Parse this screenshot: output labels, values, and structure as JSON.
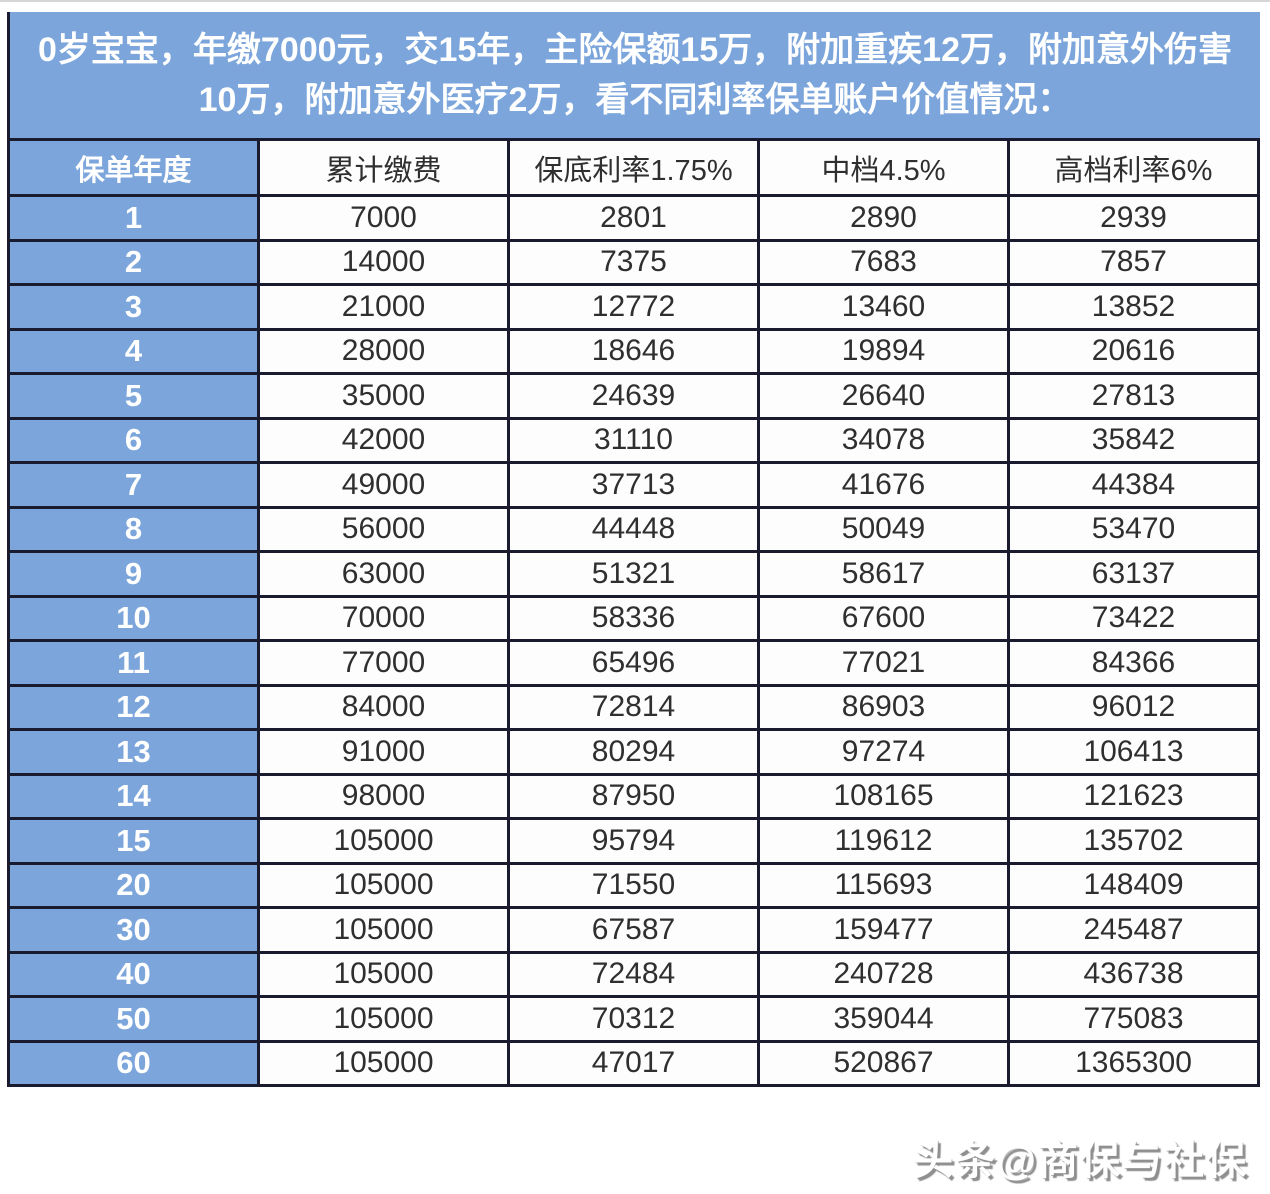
{
  "banner": {
    "line1": "0岁宝宝，年缴7000元，交15年，主险保额15万，附加重疾12万，附加意外伤害",
    "line2": "10万，附加意外医疗2万，看不同利率保单账户价值情况："
  },
  "chart_data": {
    "type": "table",
    "title": "0岁宝宝，年缴7000元，交15年，主险保额15万，附加重疾12万，附加意外伤害10万，附加意外医疗2万，看不同利率保单账户价值情况：",
    "columns": [
      "保单年度",
      "累计缴费",
      "保底利率1.75%",
      "中档4.5%",
      "高档利率6%"
    ],
    "rows": [
      [
        "1",
        "7000",
        "2801",
        "2890",
        "2939"
      ],
      [
        "2",
        "14000",
        "7375",
        "7683",
        "7857"
      ],
      [
        "3",
        "21000",
        "12772",
        "13460",
        "13852"
      ],
      [
        "4",
        "28000",
        "18646",
        "19894",
        "20616"
      ],
      [
        "5",
        "35000",
        "24639",
        "26640",
        "27813"
      ],
      [
        "6",
        "42000",
        "31110",
        "34078",
        "35842"
      ],
      [
        "7",
        "49000",
        "37713",
        "41676",
        "44384"
      ],
      [
        "8",
        "56000",
        "44448",
        "50049",
        "53470"
      ],
      [
        "9",
        "63000",
        "51321",
        "58617",
        "63137"
      ],
      [
        "10",
        "70000",
        "58336",
        "67600",
        "73422"
      ],
      [
        "11",
        "77000",
        "65496",
        "77021",
        "84366"
      ],
      [
        "12",
        "84000",
        "72814",
        "86903",
        "96012"
      ],
      [
        "13",
        "91000",
        "80294",
        "97274",
        "106413"
      ],
      [
        "14",
        "98000",
        "87950",
        "108165",
        "121623"
      ],
      [
        "15",
        "105000",
        "95794",
        "119612",
        "135702"
      ],
      [
        "20",
        "105000",
        "71550",
        "115693",
        "148409"
      ],
      [
        "30",
        "105000",
        "67587",
        "159477",
        "245487"
      ],
      [
        "40",
        "105000",
        "72484",
        "240728",
        "436738"
      ],
      [
        "50",
        "105000",
        "70312",
        "359044",
        "775083"
      ],
      [
        "60",
        "105000",
        "47017",
        "520867",
        "1365300"
      ]
    ]
  },
  "watermark": {
    "text": "头条@商保与社保"
  },
  "colors": {
    "banner_blue": "#7ca6db",
    "grid": "#1b1b30",
    "cell_bg": "#fdfdfe",
    "data_text": "#2f2f2f",
    "banner_text": "#ffffff"
  }
}
